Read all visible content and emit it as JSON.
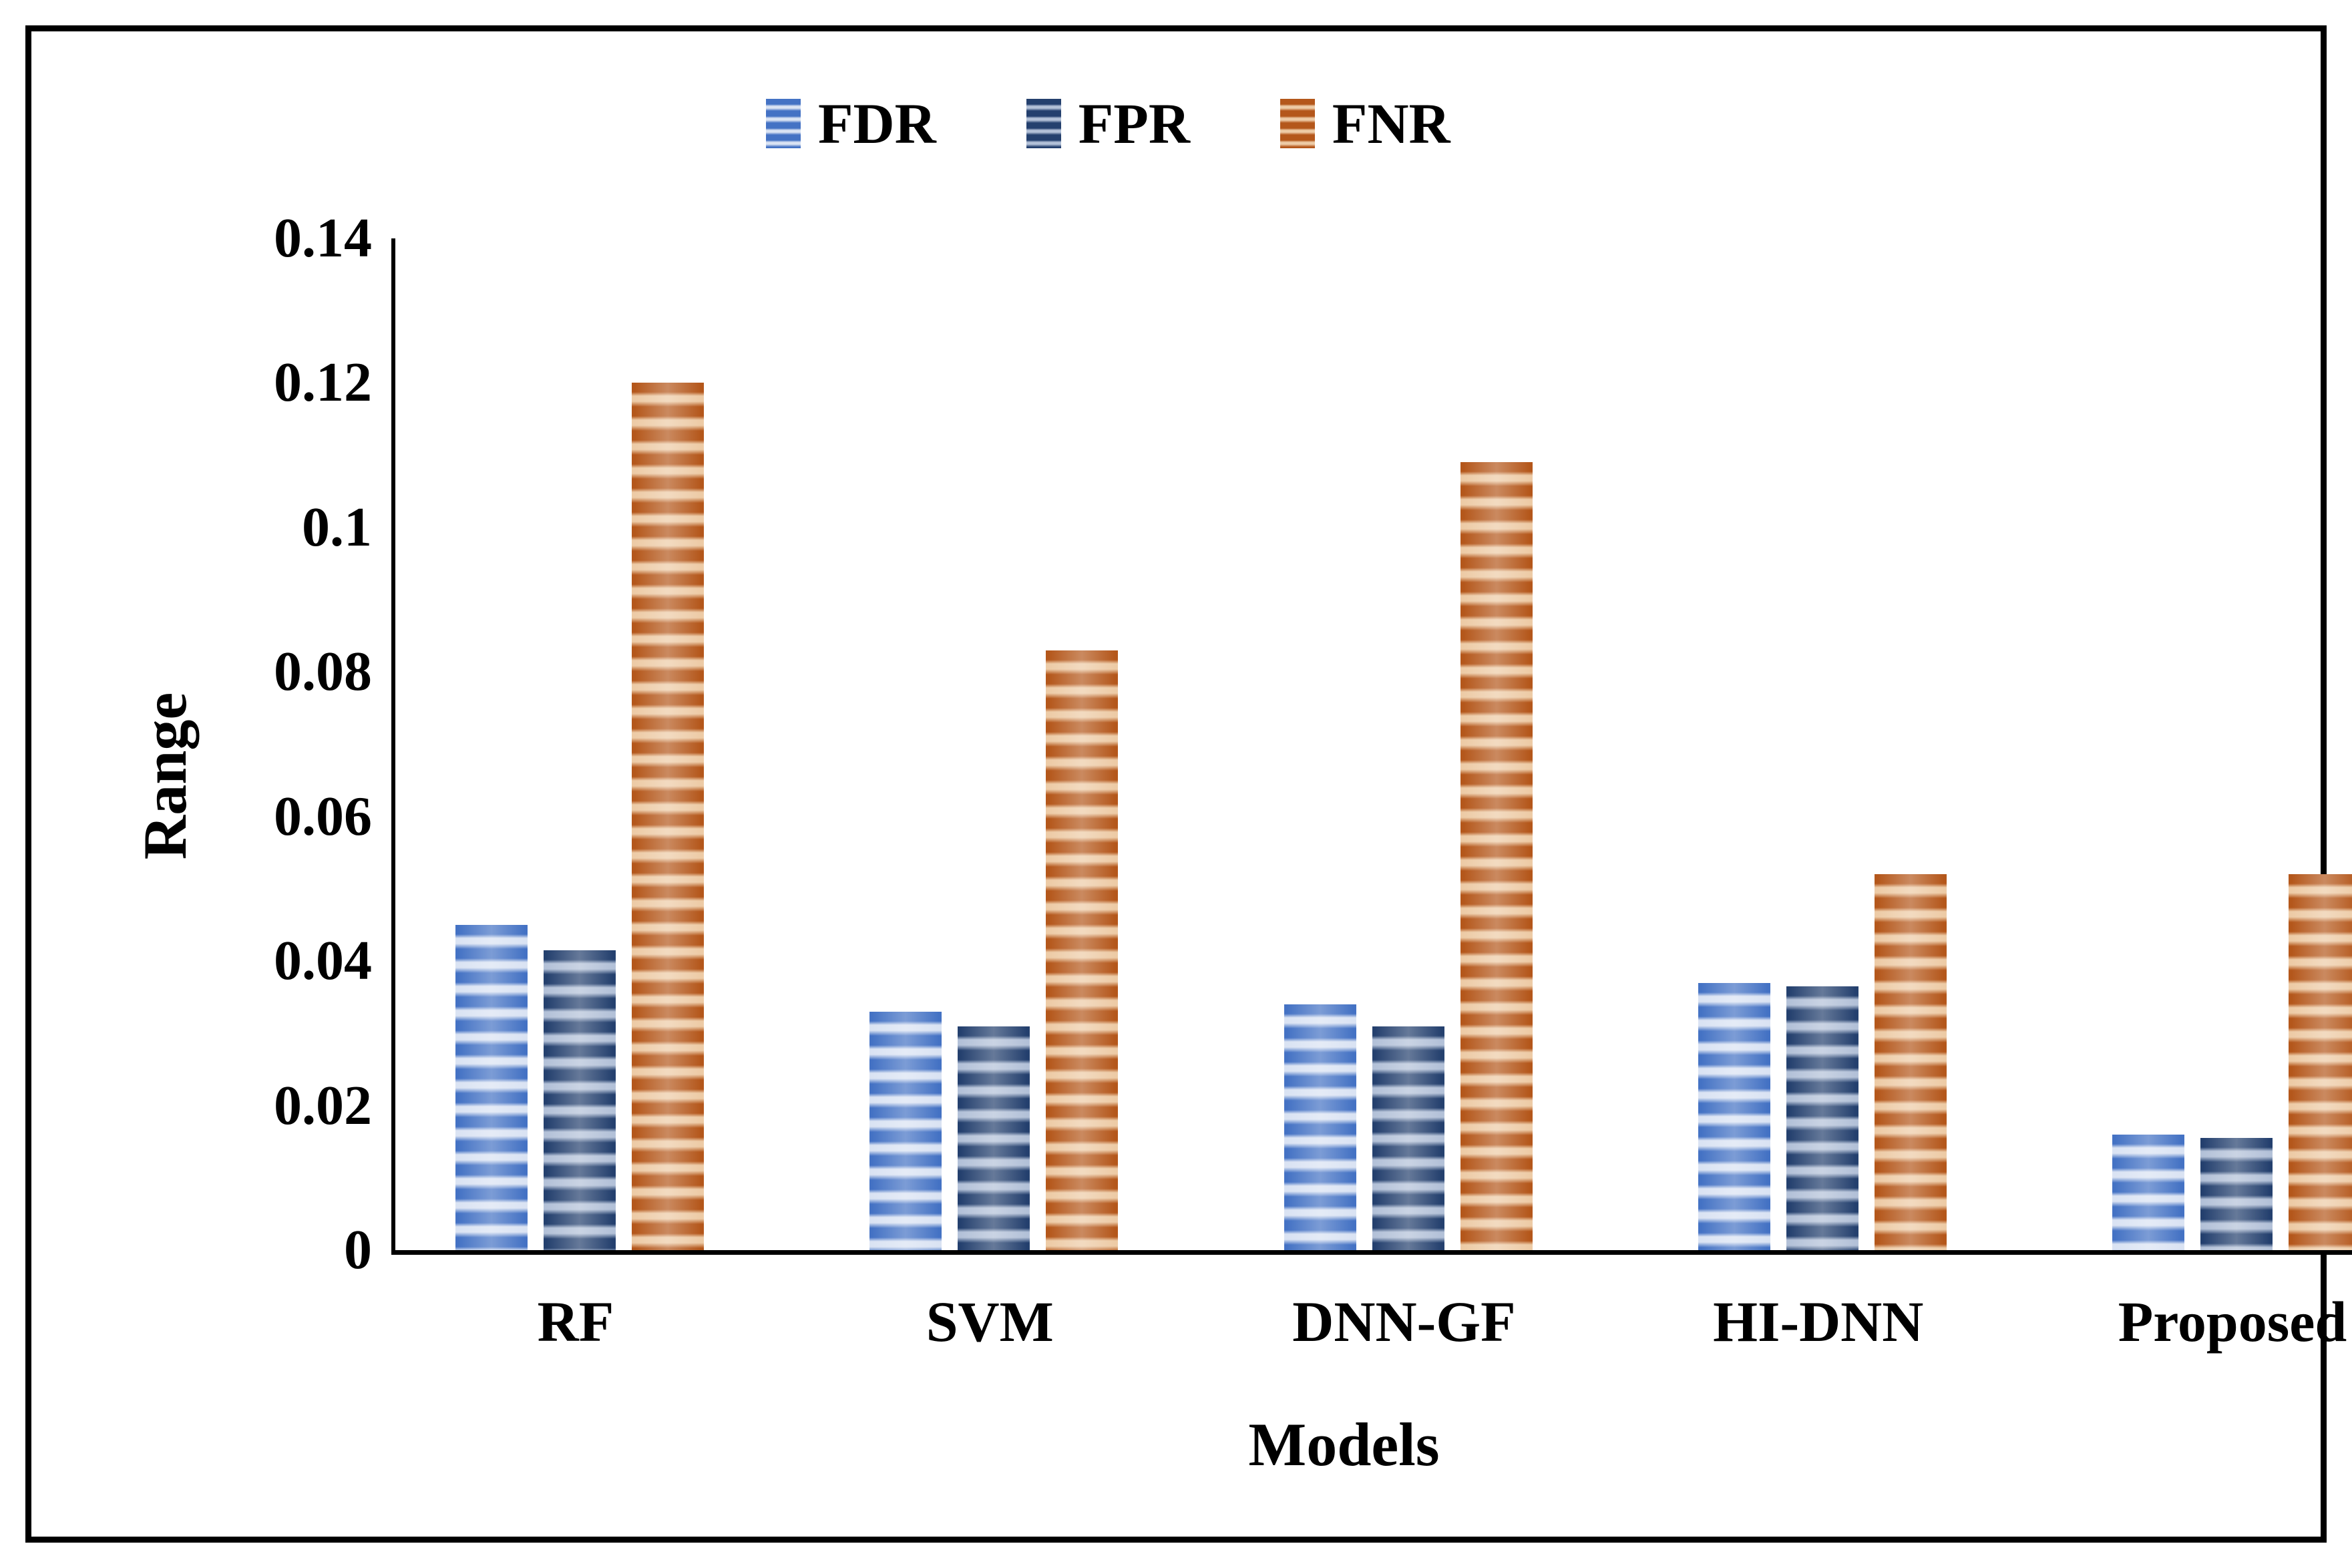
{
  "colors": {
    "axis": "#000000",
    "fdr": {
      "dark": "#4472c4",
      "light": "#dae3f3"
    },
    "fpr": {
      "dark": "#24406e",
      "light": "#b3c1d8"
    },
    "fnr": {
      "dark": "#b4571b",
      "light": "#edcba6"
    }
  },
  "legend": {
    "items": [
      "FDR",
      "FPR",
      "FNR"
    ]
  },
  "chart_data": {
    "type": "bar",
    "title": "",
    "xlabel": "Models",
    "ylabel": "Range",
    "ylim": [
      0,
      0.14
    ],
    "yticks": [
      0,
      0.02,
      0.04,
      0.06,
      0.08,
      0.1,
      0.12,
      0.14
    ],
    "ytick_labels": [
      "0",
      "0.02",
      "0.04",
      "0.06",
      "0.08",
      "0.1",
      "0.12",
      "0.14"
    ],
    "categories": [
      "RF",
      "SVM",
      "DNN-GF",
      "HI-DNN",
      "Proposed"
    ],
    "series": [
      {
        "name": "FDR",
        "color_key": "fdr",
        "values": [
          0.045,
          0.033,
          0.034,
          0.037,
          0.016
        ]
      },
      {
        "name": "FPR",
        "color_key": "fpr",
        "values": [
          0.0415,
          0.031,
          0.031,
          0.0365,
          0.0155
        ]
      },
      {
        "name": "FNR",
        "color_key": "fnr",
        "values": [
          0.12,
          0.083,
          0.109,
          0.052,
          0.052
        ]
      }
    ],
    "legend_position": "top",
    "grid": false
  }
}
